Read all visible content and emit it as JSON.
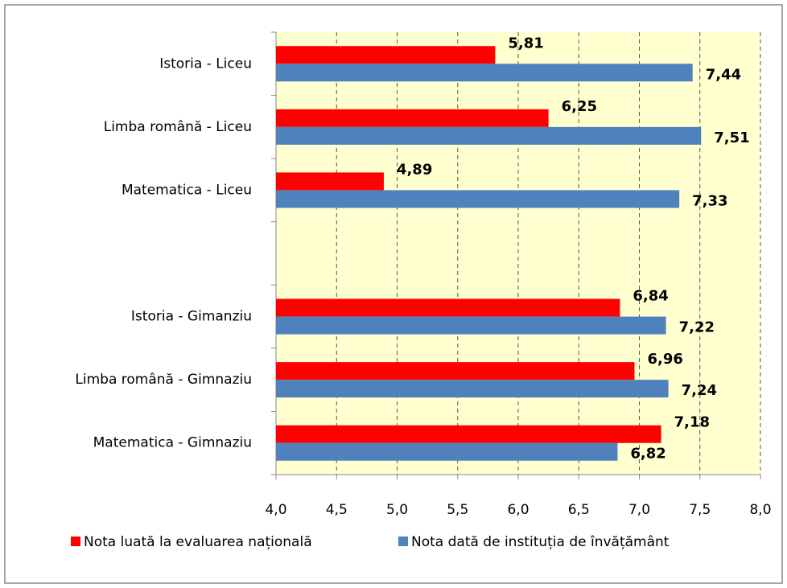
{
  "chart_data": {
    "type": "hbar",
    "categories": [
      "Istoria - Liceu",
      "Limba română - Liceu",
      "Matematica - Liceu",
      null,
      "Istoria - Gimanziu",
      "Limba română - Gimnaziu",
      "Matematica - Gimnaziu"
    ],
    "series": [
      {
        "name": "Nota luată la evaluarea națională",
        "color": "#ff0000",
        "values": [
          5.81,
          6.25,
          4.89,
          null,
          6.84,
          6.96,
          7.18
        ],
        "value_labels": [
          "5,81",
          "6,25",
          "4,89",
          null,
          "6,84",
          "6,96",
          "7,18"
        ]
      },
      {
        "name": "Nota dată de instituția de învățământ",
        "color": "#4f81bd",
        "values": [
          7.44,
          7.51,
          7.33,
          null,
          7.22,
          7.24,
          6.82
        ],
        "value_labels": [
          "7,44",
          "7,51",
          "7,33",
          null,
          "7,22",
          "7,24",
          "6,82"
        ]
      }
    ],
    "xlim": [
      4.0,
      8.0
    ],
    "xticks": [
      {
        "value": 4.0,
        "label": "4,0"
      },
      {
        "value": 4.5,
        "label": "4,5"
      },
      {
        "value": 5.0,
        "label": "5,0"
      },
      {
        "value": 5.5,
        "label": "5,5"
      },
      {
        "value": 6.0,
        "label": "6,0"
      },
      {
        "value": 6.5,
        "label": "6,5"
      },
      {
        "value": 7.0,
        "label": "7,0"
      },
      {
        "value": 7.5,
        "label": "7,5"
      },
      {
        "value": 8.0,
        "label": "8,0"
      }
    ],
    "grid": true,
    "legend": "bottom"
  }
}
